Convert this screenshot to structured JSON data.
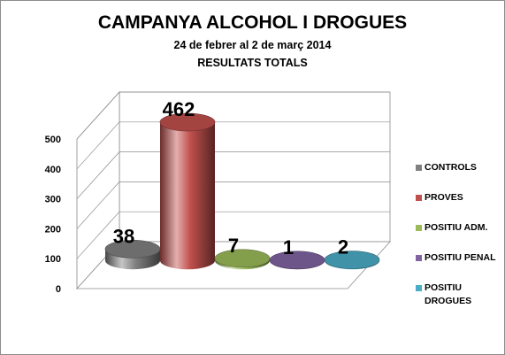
{
  "chart_data": {
    "type": "bar",
    "style": "3d-cylinder",
    "title": "CAMPANYA ALCOHOL I DROGUES",
    "subtitle": "24 de febrer al 2 de març 2014",
    "subtitle2": "RESULTATS TOTALS",
    "categories": [
      "CONTROLS",
      "PROVES",
      "POSITIU ADM.",
      "POSITIU PENAL",
      "POSITIU DROGUES"
    ],
    "values": [
      38,
      462,
      7,
      1,
      2
    ],
    "data_labels": [
      "38",
      "462",
      "7",
      "1",
      "2"
    ],
    "colors": [
      "#808080",
      "#c0504d",
      "#9bbb59",
      "#8064a2",
      "#4bacc6"
    ],
    "ylim": [
      0,
      500
    ],
    "yticks": [
      "0",
      "100",
      "200",
      "300",
      "400",
      "500"
    ],
    "grid": true,
    "legend_position": "right"
  }
}
